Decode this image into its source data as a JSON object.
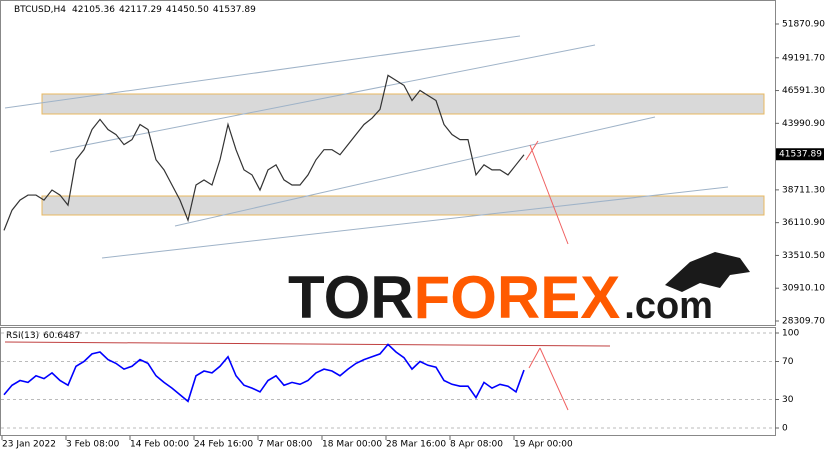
{
  "chart_data": [
    {
      "type": "line",
      "symbol": "BTCUSD,H4",
      "ohlc": [
        "42105.36",
        "42117.29",
        "41450.50"
      ],
      "last_price": 41537.89,
      "categories": [
        "23 Jan 2022",
        null,
        null,
        null,
        null,
        null,
        null,
        null,
        "3 Feb 08:00",
        null,
        null,
        null,
        null,
        null,
        null,
        null,
        "14 Feb 00:00",
        null,
        null,
        null,
        null,
        null,
        null,
        null,
        "24 Feb 16:00",
        null,
        null,
        null,
        null,
        null,
        null,
        null,
        "7 Mar 08:00",
        null,
        null,
        null,
        null,
        null,
        null,
        null,
        "18 Mar 00:00",
        null,
        null,
        null,
        null,
        null,
        null,
        null,
        "28 Mar 16:00",
        null,
        null,
        null,
        null,
        null,
        null,
        null,
        "8 Apr 08:00",
        null,
        null,
        null,
        null,
        null,
        null,
        null,
        "19 Apr 00:00",
        null
      ],
      "series": [
        {
          "color": "#333333",
          "values": [
            35500,
            37100,
            37900,
            38300,
            38300,
            37900,
            38700,
            38300,
            37500,
            41100,
            41900,
            43500,
            44300,
            43500,
            43100,
            42300,
            42700,
            43900,
            43500,
            41100,
            40300,
            39100,
            37900,
            36300,
            39100,
            39500,
            39100,
            41100,
            43900,
            41900,
            40300,
            39900,
            38700,
            40300,
            40700,
            39500,
            39100,
            39100,
            39900,
            41100,
            41900,
            41900,
            41500,
            42300,
            43100,
            43900,
            44400,
            45100,
            47800,
            47400,
            47000,
            45800,
            46600,
            46200,
            45800,
            43900,
            43100,
            42700,
            42700,
            39900,
            40700,
            40300,
            40300,
            39900,
            40700,
            41500
          ]
        }
      ],
      "zones": [
        [
          44731,
          46318
        ],
        [
          36719,
          38226
        ]
      ],
      "ylim": [
        27992,
        53616
      ],
      "yticks": [
        {
          "value": 28309.7,
          "label": "28309.70"
        },
        {
          "value": 30910.1,
          "label": "30910.10"
        },
        {
          "value": 33510.5,
          "label": "33510.50"
        },
        {
          "value": 36110.9,
          "label": "36110.90"
        },
        {
          "value": 38711.3,
          "label": "38711.30"
        },
        {
          "value": 43990.9,
          "label": "43990.90"
        },
        {
          "value": 46591.3,
          "label": "46591.30"
        },
        {
          "value": 49191.7,
          "label": "49191.70"
        },
        {
          "value": 51870.9,
          "label": "51870.90"
        }
      ]
    },
    {
      "type": "line",
      "name": "RSI(13)",
      "last_value": 60.6487,
      "series": [
        {
          "color": "#0000ff",
          "values": [
            35,
            45,
            50,
            48,
            55,
            52,
            58,
            50,
            45,
            65,
            70,
            78,
            80,
            72,
            68,
            62,
            65,
            72,
            68,
            55,
            48,
            42,
            35,
            28,
            55,
            60,
            58,
            65,
            75,
            55,
            45,
            42,
            38,
            50,
            55,
            45,
            48,
            46,
            50,
            58,
            62,
            60,
            55,
            62,
            68,
            72,
            75,
            78,
            88,
            80,
            74,
            62,
            70,
            66,
            64,
            50,
            46,
            44,
            44,
            32,
            48,
            42,
            46,
            44,
            38,
            61
          ]
        }
      ],
      "ylim": [
        0,
        100
      ],
      "yticks": [
        0,
        30,
        70,
        100
      ]
    }
  ],
  "watermark": [
    "TOR",
    "FOREX",
    ".com"
  ]
}
